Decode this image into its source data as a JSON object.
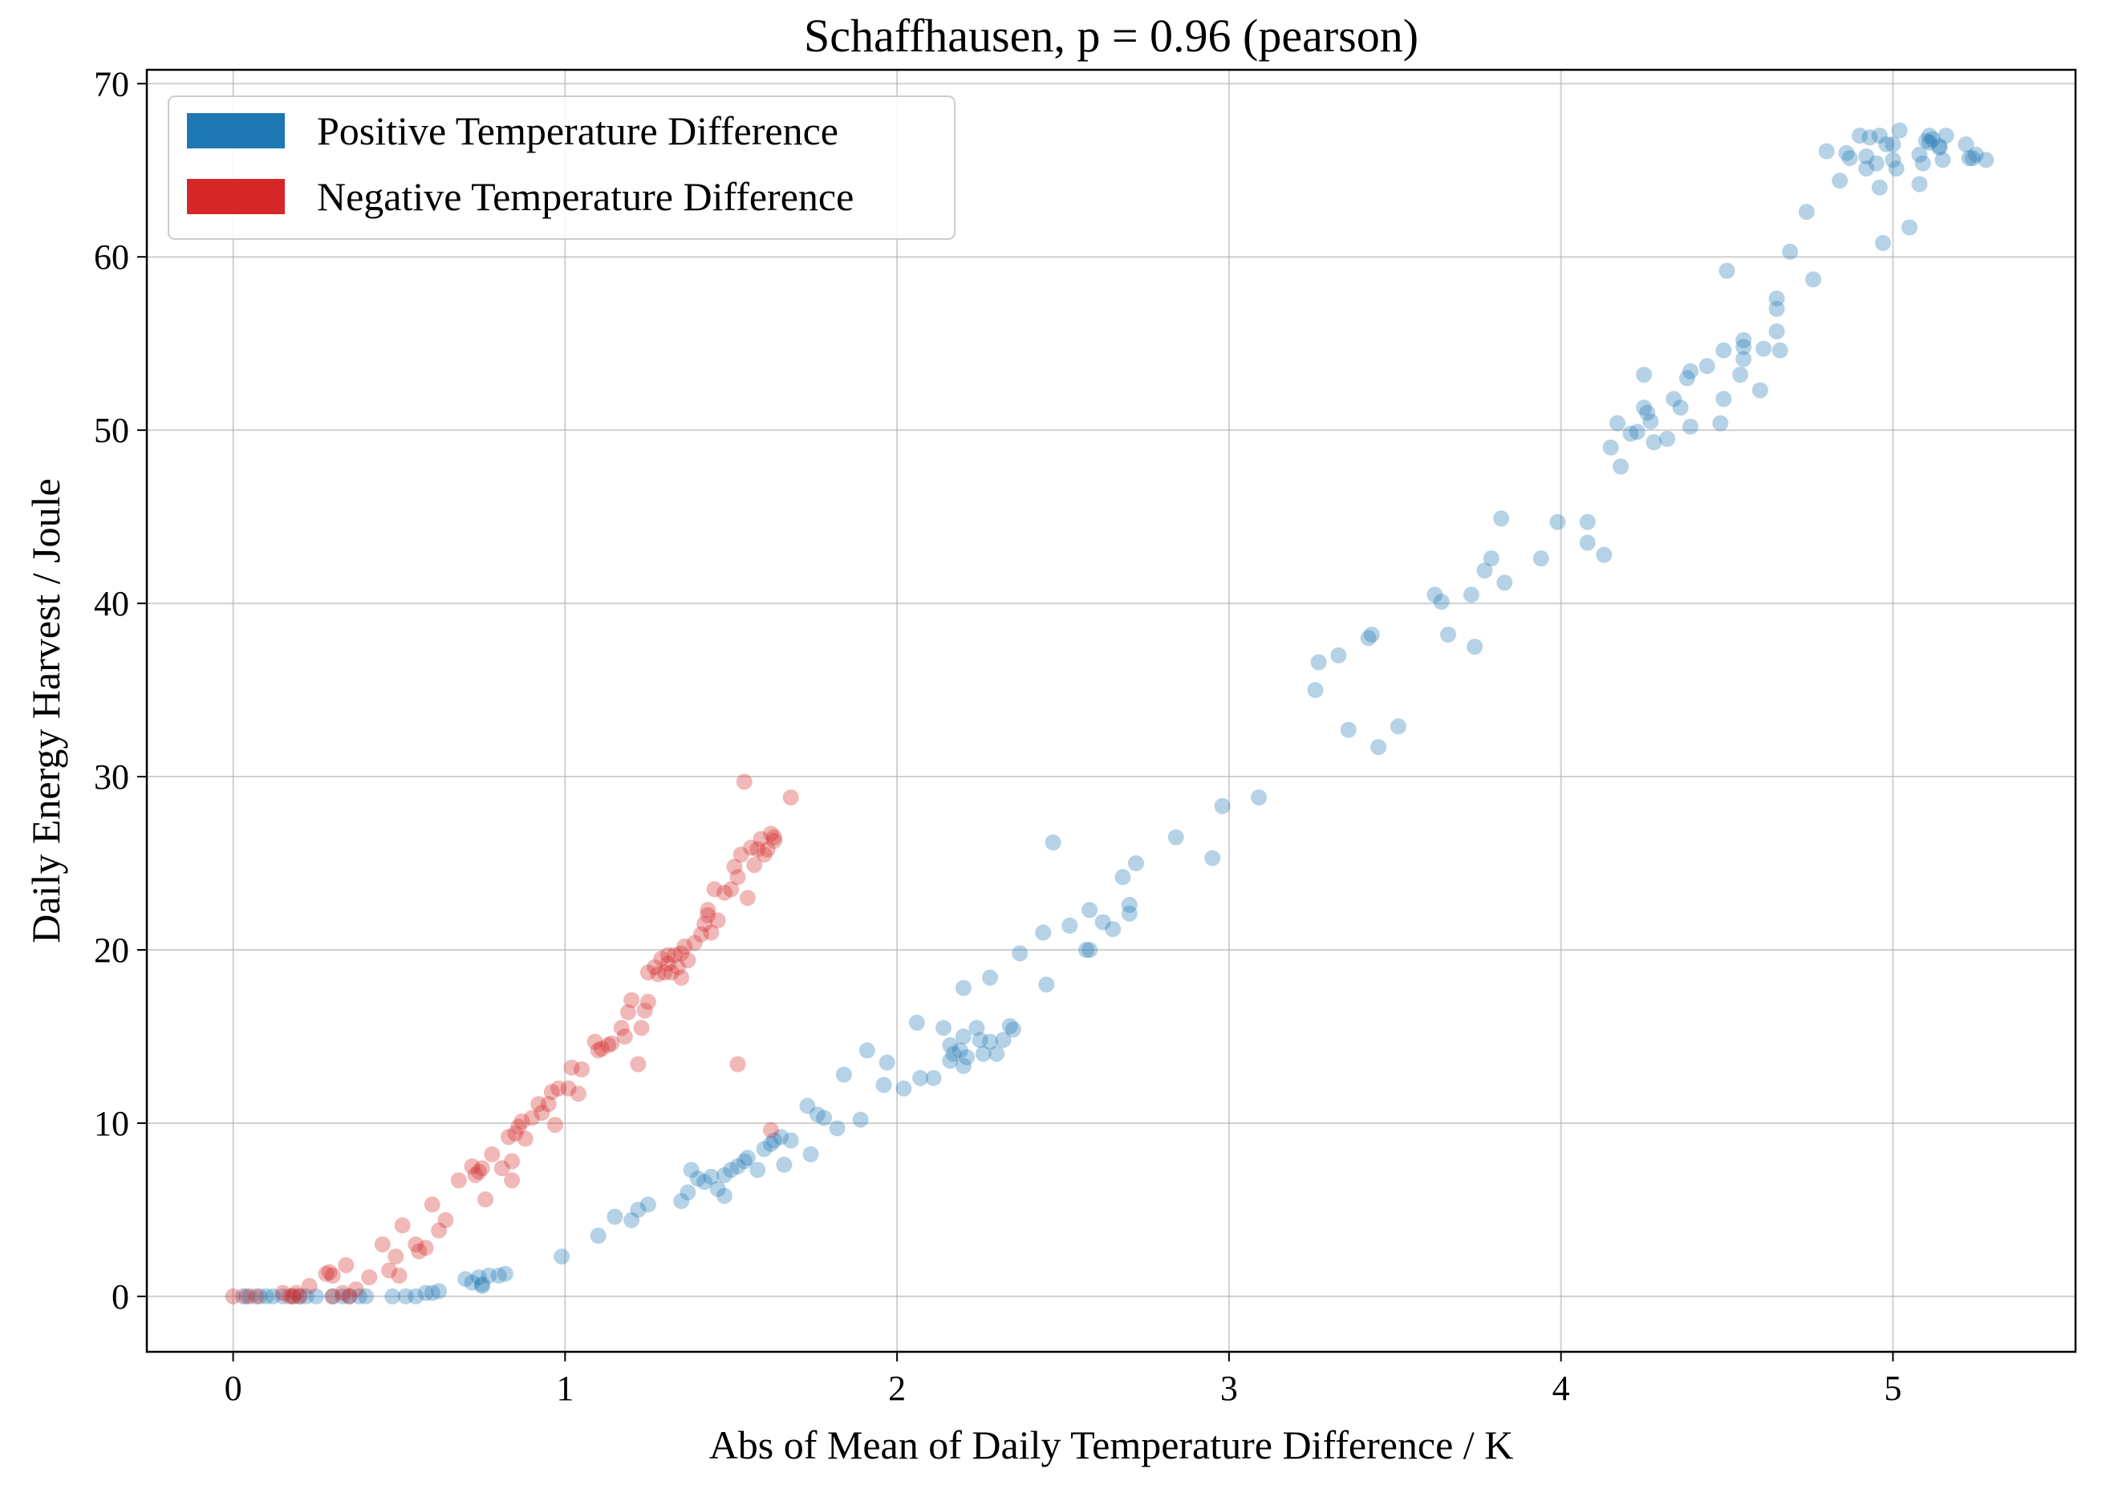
{
  "chart_data": {
    "type": "scatter",
    "title": "Schaffhausen, p = 0.96 (pearson)",
    "xlabel": "Abs of Mean of Daily Temperature Difference / K",
    "ylabel": "Daily Energy Harvest / Joule",
    "xlim": [
      -0.26,
      5.55
    ],
    "ylim": [
      -3.2,
      70.8
    ],
    "xticks": [
      0,
      1,
      2,
      3,
      4,
      5
    ],
    "yticks": [
      0,
      10,
      20,
      30,
      40,
      50,
      60,
      70
    ],
    "grid": true,
    "legend_position": "top-left",
    "series": [
      {
        "name": "Positive Temperature Difference",
        "color": "#1f77b4",
        "points": [
          [
            0.03,
            0
          ],
          [
            0.05,
            0
          ],
          [
            0.08,
            0
          ],
          [
            0.1,
            0
          ],
          [
            0.12,
            0
          ],
          [
            0.15,
            0
          ],
          [
            0.18,
            0
          ],
          [
            0.2,
            0
          ],
          [
            0.22,
            0
          ],
          [
            0.25,
            0
          ],
          [
            0.3,
            0
          ],
          [
            0.33,
            0
          ],
          [
            0.35,
            0
          ],
          [
            0.38,
            0
          ],
          [
            0.4,
            0
          ],
          [
            0.48,
            0
          ],
          [
            0.52,
            0
          ],
          [
            0.55,
            0
          ],
          [
            0.58,
            0.2
          ],
          [
            0.6,
            0.2
          ],
          [
            0.62,
            0.3
          ],
          [
            0.7,
            1.0
          ],
          [
            0.72,
            0.8
          ],
          [
            0.74,
            1.1
          ],
          [
            0.75,
            0.7
          ],
          [
            0.77,
            1.2
          ],
          [
            0.8,
            1.2
          ],
          [
            0.82,
            1.3
          ],
          [
            0.75,
            0.6
          ],
          [
            0.99,
            2.3
          ],
          [
            1.1,
            3.5
          ],
          [
            1.15,
            4.6
          ],
          [
            1.2,
            4.4
          ],
          [
            1.22,
            5.0
          ],
          [
            1.25,
            5.3
          ],
          [
            1.35,
            5.5
          ],
          [
            1.37,
            6.0
          ],
          [
            1.38,
            7.3
          ],
          [
            1.4,
            6.8
          ],
          [
            1.42,
            6.6
          ],
          [
            1.44,
            6.9
          ],
          [
            1.46,
            6.2
          ],
          [
            1.48,
            7.0
          ],
          [
            1.5,
            7.3
          ],
          [
            1.52,
            7.5
          ],
          [
            1.54,
            7.8
          ],
          [
            1.55,
            8.0
          ],
          [
            1.58,
            7.3
          ],
          [
            1.6,
            8.5
          ],
          [
            1.62,
            8.8
          ],
          [
            1.63,
            9.0
          ],
          [
            1.65,
            9.2
          ],
          [
            1.66,
            7.6
          ],
          [
            1.68,
            9.0
          ],
          [
            1.48,
            5.8
          ],
          [
            1.73,
            11.0
          ],
          [
            1.74,
            8.2
          ],
          [
            1.76,
            10.5
          ],
          [
            1.78,
            10.3
          ],
          [
            1.82,
            9.7
          ],
          [
            1.84,
            12.8
          ],
          [
            1.89,
            10.2
          ],
          [
            1.91,
            14.2
          ],
          [
            1.96,
            12.2
          ],
          [
            1.97,
            13.5
          ],
          [
            2.02,
            12.0
          ],
          [
            2.06,
            15.8
          ],
          [
            2.07,
            12.6
          ],
          [
            2.11,
            12.6
          ],
          [
            2.14,
            15.5
          ],
          [
            2.16,
            14.5
          ],
          [
            2.16,
            13.6
          ],
          [
            2.17,
            14.0
          ],
          [
            2.19,
            14.2
          ],
          [
            2.2,
            13.3
          ],
          [
            2.2,
            15.0
          ],
          [
            2.21,
            13.8
          ],
          [
            2.2,
            17.8
          ],
          [
            2.24,
            15.5
          ],
          [
            2.25,
            14.8
          ],
          [
            2.26,
            14.0
          ],
          [
            2.28,
            14.7
          ],
          [
            2.28,
            18.4
          ],
          [
            2.3,
            14.0
          ],
          [
            2.32,
            14.8
          ],
          [
            2.34,
            15.6
          ],
          [
            2.35,
            15.4
          ],
          [
            2.37,
            19.8
          ],
          [
            2.44,
            21.0
          ],
          [
            2.45,
            18.0
          ],
          [
            2.47,
            26.2
          ],
          [
            2.52,
            21.4
          ],
          [
            2.57,
            20.0
          ],
          [
            2.58,
            22.3
          ],
          [
            2.58,
            20.0
          ],
          [
            2.62,
            21.6
          ],
          [
            2.65,
            21.2
          ],
          [
            2.68,
            24.2
          ],
          [
            2.7,
            22.6
          ],
          [
            2.7,
            22.1
          ],
          [
            2.72,
            25.0
          ],
          [
            2.84,
            26.5
          ],
          [
            2.95,
            25.3
          ],
          [
            2.98,
            28.3
          ],
          [
            3.09,
            28.8
          ],
          [
            3.26,
            35.0
          ],
          [
            3.27,
            36.6
          ],
          [
            3.33,
            37.0
          ],
          [
            3.36,
            32.7
          ],
          [
            3.42,
            38.0
          ],
          [
            3.43,
            38.2
          ],
          [
            3.45,
            31.7
          ],
          [
            3.51,
            32.9
          ],
          [
            3.62,
            40.5
          ],
          [
            3.64,
            40.1
          ],
          [
            3.66,
            38.2
          ],
          [
            3.73,
            40.5
          ],
          [
            3.74,
            37.5
          ],
          [
            3.77,
            41.9
          ],
          [
            3.79,
            42.6
          ],
          [
            3.82,
            44.9
          ],
          [
            3.83,
            41.2
          ],
          [
            3.94,
            42.6
          ],
          [
            3.99,
            44.7
          ],
          [
            4.08,
            43.5
          ],
          [
            4.08,
            44.7
          ],
          [
            4.13,
            42.8
          ],
          [
            4.15,
            49.0
          ],
          [
            4.17,
            50.4
          ],
          [
            4.18,
            47.9
          ],
          [
            4.21,
            49.8
          ],
          [
            4.23,
            49.9
          ],
          [
            4.25,
            51.3
          ],
          [
            4.25,
            53.2
          ],
          [
            4.26,
            51.0
          ],
          [
            4.27,
            50.5
          ],
          [
            4.28,
            49.3
          ],
          [
            4.32,
            49.5
          ],
          [
            4.34,
            51.8
          ],
          [
            4.36,
            51.3
          ],
          [
            4.38,
            53.0
          ],
          [
            4.39,
            53.4
          ],
          [
            4.39,
            50.2
          ],
          [
            4.44,
            53.7
          ],
          [
            4.48,
            50.4
          ],
          [
            4.49,
            51.8
          ],
          [
            4.49,
            54.6
          ],
          [
            4.5,
            59.2
          ],
          [
            4.54,
            53.2
          ],
          [
            4.55,
            54.8
          ],
          [
            4.55,
            55.2
          ],
          [
            4.55,
            54.1
          ],
          [
            4.6,
            52.3
          ],
          [
            4.61,
            54.7
          ],
          [
            4.65,
            55.7
          ],
          [
            4.65,
            57.0
          ],
          [
            4.65,
            57.6
          ],
          [
            4.66,
            54.6
          ],
          [
            4.69,
            60.3
          ],
          [
            4.74,
            62.6
          ],
          [
            4.76,
            58.7
          ],
          [
            4.8,
            66.1
          ],
          [
            4.84,
            64.4
          ],
          [
            4.86,
            66.0
          ],
          [
            4.87,
            65.7
          ],
          [
            4.9,
            67.0
          ],
          [
            4.92,
            65.8
          ],
          [
            4.92,
            65.1
          ],
          [
            4.93,
            66.9
          ],
          [
            4.95,
            65.4
          ],
          [
            4.96,
            67.0
          ],
          [
            4.96,
            64.0
          ],
          [
            4.97,
            60.8
          ],
          [
            4.98,
            66.5
          ],
          [
            5.0,
            65.6
          ],
          [
            5.0,
            66.5
          ],
          [
            5.01,
            65.1
          ],
          [
            5.02,
            67.3
          ],
          [
            5.05,
            61.7
          ],
          [
            5.08,
            64.2
          ],
          [
            5.08,
            65.9
          ],
          [
            5.09,
            65.4
          ],
          [
            5.1,
            66.7
          ],
          [
            5.11,
            66.6
          ],
          [
            5.11,
            67.0
          ],
          [
            5.12,
            66.8
          ],
          [
            5.14,
            66.3
          ],
          [
            5.14,
            66.4
          ],
          [
            5.15,
            65.6
          ],
          [
            5.16,
            67.0
          ],
          [
            5.22,
            66.5
          ],
          [
            5.23,
            65.7
          ],
          [
            5.24,
            65.7
          ],
          [
            5.25,
            65.9
          ],
          [
            5.28,
            65.6
          ]
        ]
      },
      {
        "name": "Negative Temperature Difference",
        "color": "#d62728",
        "points": [
          [
            0.0,
            0
          ],
          [
            0.04,
            0
          ],
          [
            0.07,
            0
          ],
          [
            0.15,
            0.2
          ],
          [
            0.17,
            0
          ],
          [
            0.18,
            0
          ],
          [
            0.19,
            0.2
          ],
          [
            0.2,
            0
          ],
          [
            0.23,
            0.6
          ],
          [
            0.28,
            1.3
          ],
          [
            0.29,
            1.4
          ],
          [
            0.3,
            1.2
          ],
          [
            0.3,
            0
          ],
          [
            0.33,
            0.2
          ],
          [
            0.34,
            1.8
          ],
          [
            0.35,
            0
          ],
          [
            0.37,
            0.4
          ],
          [
            0.41,
            1.1
          ],
          [
            0.45,
            3.0
          ],
          [
            0.47,
            1.5
          ],
          [
            0.49,
            2.3
          ],
          [
            0.5,
            1.2
          ],
          [
            0.51,
            4.1
          ],
          [
            0.55,
            3.0
          ],
          [
            0.56,
            2.6
          ],
          [
            0.58,
            2.8
          ],
          [
            0.6,
            5.3
          ],
          [
            0.62,
            3.8
          ],
          [
            0.64,
            4.4
          ],
          [
            0.68,
            6.7
          ],
          [
            0.72,
            7.5
          ],
          [
            0.73,
            7.0
          ],
          [
            0.74,
            7.2
          ],
          [
            0.75,
            7.4
          ],
          [
            0.76,
            5.6
          ],
          [
            0.78,
            8.2
          ],
          [
            0.81,
            7.4
          ],
          [
            0.83,
            9.2
          ],
          [
            0.84,
            7.8
          ],
          [
            0.84,
            6.7
          ],
          [
            0.85,
            9.4
          ],
          [
            0.86,
            9.8
          ],
          [
            0.87,
            10.1
          ],
          [
            0.88,
            9.1
          ],
          [
            0.9,
            10.3
          ],
          [
            0.92,
            11.1
          ],
          [
            0.93,
            10.6
          ],
          [
            0.95,
            11.1
          ],
          [
            0.96,
            11.8
          ],
          [
            0.97,
            9.9
          ],
          [
            0.98,
            12.0
          ],
          [
            1.01,
            12.0
          ],
          [
            1.02,
            13.2
          ],
          [
            1.04,
            11.7
          ],
          [
            1.05,
            13.1
          ],
          [
            1.09,
            14.7
          ],
          [
            1.1,
            14.2
          ],
          [
            1.11,
            14.3
          ],
          [
            1.13,
            14.5
          ],
          [
            1.14,
            14.6
          ],
          [
            1.17,
            15.5
          ],
          [
            1.18,
            15.0
          ],
          [
            1.19,
            16.4
          ],
          [
            1.2,
            17.1
          ],
          [
            1.22,
            13.4
          ],
          [
            1.23,
            15.5
          ],
          [
            1.24,
            16.5
          ],
          [
            1.25,
            18.7
          ],
          [
            1.25,
            17.0
          ],
          [
            1.27,
            19.0
          ],
          [
            1.28,
            18.6
          ],
          [
            1.29,
            19.5
          ],
          [
            1.3,
            18.7
          ],
          [
            1.31,
            19.7
          ],
          [
            1.31,
            19.2
          ],
          [
            1.32,
            18.7
          ],
          [
            1.33,
            19.7
          ],
          [
            1.34,
            19.0
          ],
          [
            1.35,
            18.4
          ],
          [
            1.35,
            19.8
          ],
          [
            1.36,
            20.2
          ],
          [
            1.37,
            19.4
          ],
          [
            1.39,
            20.4
          ],
          [
            1.41,
            20.9
          ],
          [
            1.42,
            21.5
          ],
          [
            1.43,
            22.0
          ],
          [
            1.43,
            22.3
          ],
          [
            1.44,
            21.0
          ],
          [
            1.45,
            23.5
          ],
          [
            1.46,
            21.7
          ],
          [
            1.48,
            23.3
          ],
          [
            1.5,
            23.5
          ],
          [
            1.51,
            24.8
          ],
          [
            1.52,
            13.4
          ],
          [
            1.52,
            24.2
          ],
          [
            1.53,
            25.5
          ],
          [
            1.54,
            29.7
          ],
          [
            1.55,
            23.0
          ],
          [
            1.56,
            25.9
          ],
          [
            1.57,
            24.9
          ],
          [
            1.58,
            25.8
          ],
          [
            1.59,
            26.4
          ],
          [
            1.6,
            25.5
          ],
          [
            1.61,
            25.8
          ],
          [
            1.62,
            9.6
          ],
          [
            1.62,
            26.7
          ],
          [
            1.63,
            26.3
          ],
          [
            1.63,
            26.5
          ],
          [
            1.68,
            28.8
          ]
        ]
      }
    ]
  }
}
